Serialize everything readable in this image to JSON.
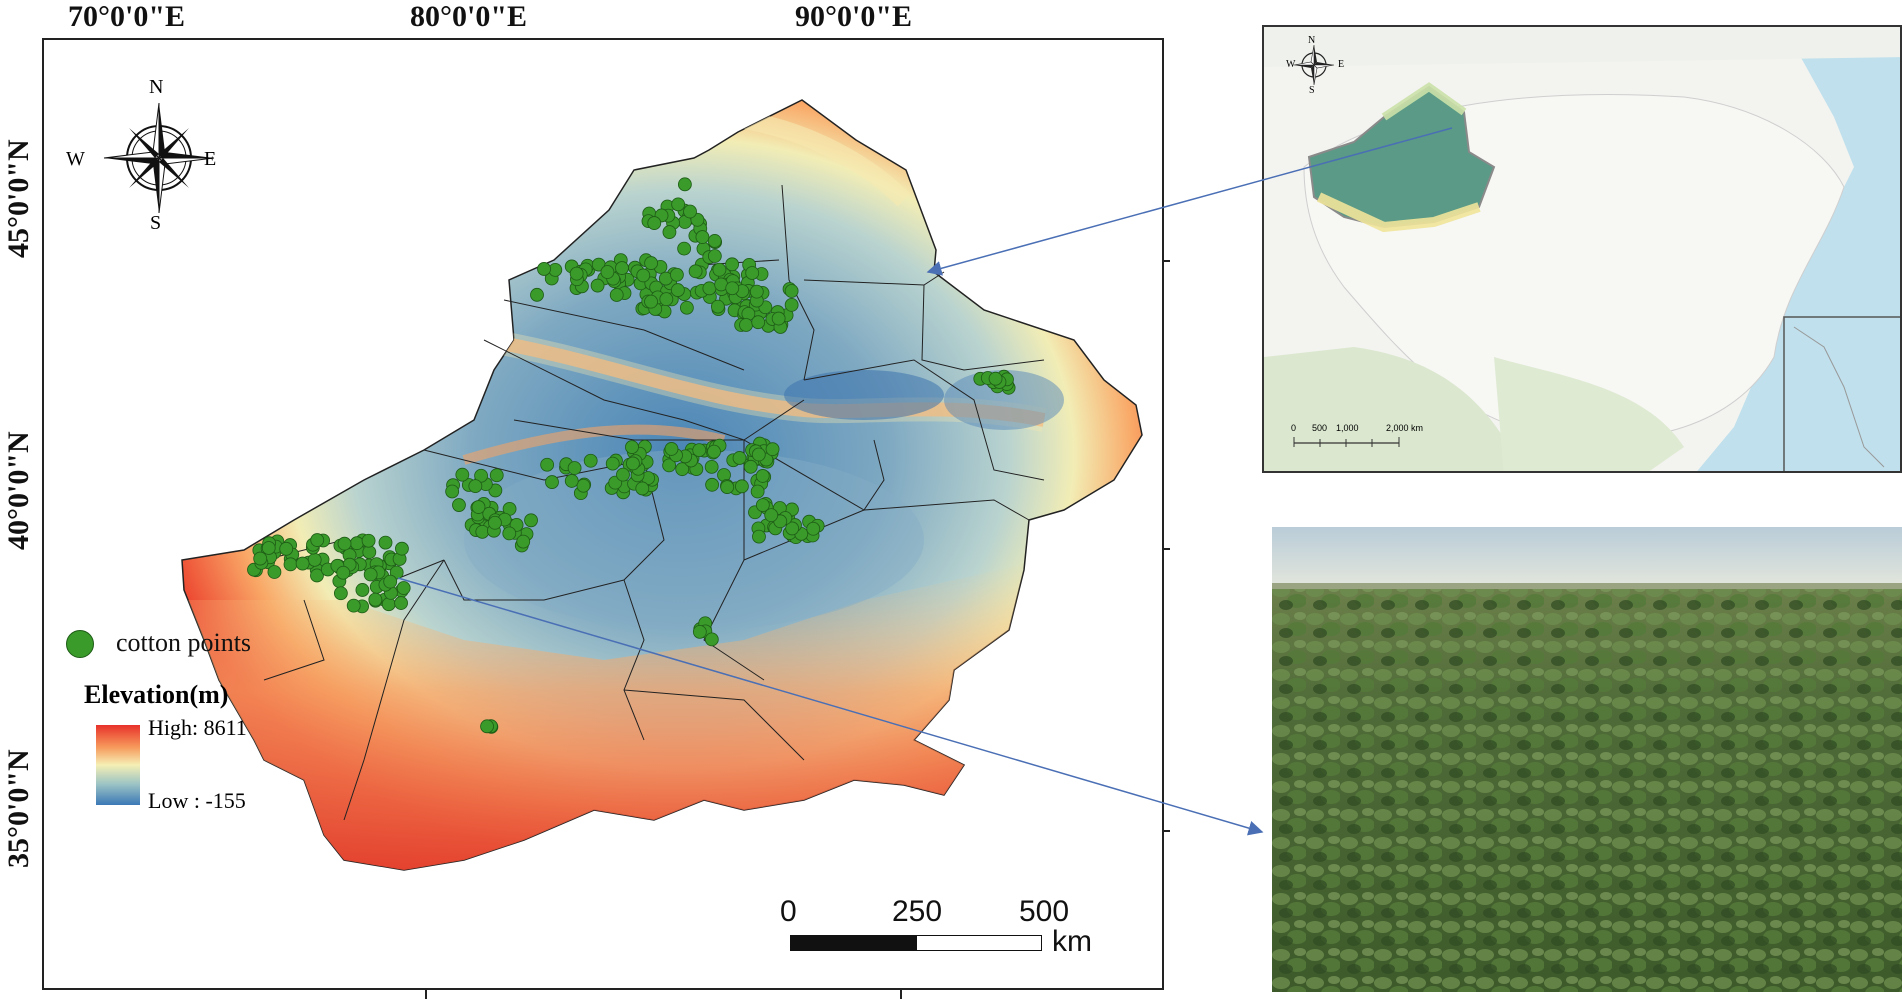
{
  "map": {
    "lon_labels": [
      "70°0'0\"E",
      "80°0'0\"E",
      "90°0'0\"E"
    ],
    "lat_labels": [
      "45°0'0\"N",
      "40°0'0\"N",
      "35°0'0\"N"
    ],
    "compass": {
      "n": "N",
      "s": "S",
      "e": "E",
      "w": "W"
    },
    "legend": {
      "points_label": "cotton points",
      "elevation_title": "Elevation(m)",
      "high_label": "High: 8611",
      "low_label": "Low : -155",
      "point_color": "#3a9a2a",
      "ramp_colors": [
        "#e8322b",
        "#f79a5c",
        "#f5efb4",
        "#9cc3c5",
        "#3b78b6"
      ]
    },
    "scale_bar": {
      "labels": [
        "0",
        "250",
        "500"
      ],
      "unit": "km"
    }
  },
  "inset": {
    "compass": {
      "n": "N",
      "s": "S",
      "e": "E",
      "w": "W"
    },
    "scale_labels": [
      "0",
      "500",
      "1,000",
      "2,000 km"
    ]
  },
  "photo": {
    "subject": "cotton field"
  }
}
